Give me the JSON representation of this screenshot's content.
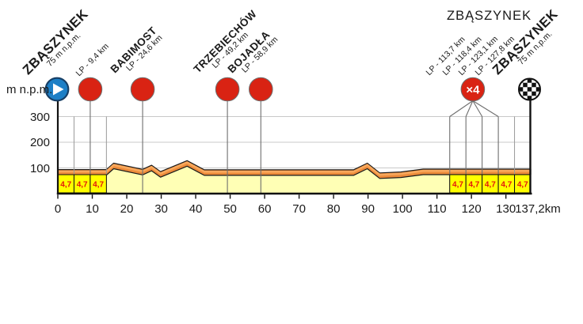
{
  "chart_data": {
    "type": "area",
    "description": "Cycling stage elevation profile",
    "x_axis": {
      "ticks": [
        "0",
        "10",
        "20",
        "30",
        "40",
        "50",
        "60",
        "70",
        "80",
        "90",
        "100",
        "110",
        "120",
        "130"
      ],
      "tick_km": [
        0,
        10,
        20,
        30,
        40,
        50,
        60,
        70,
        80,
        90,
        100,
        110,
        120,
        130
      ],
      "end_label": "137,2km",
      "end_km": 137.2,
      "range_km": [
        0,
        137.2
      ]
    },
    "y_axis": {
      "unit": "m n.p.m.",
      "ticks": [
        "300",
        "200",
        "100"
      ],
      "tick_m": [
        300,
        200,
        100
      ],
      "range_m": [
        0,
        330
      ]
    },
    "profile_points_km_m": [
      [
        0,
        75
      ],
      [
        14.1,
        75
      ],
      [
        16.2,
        100
      ],
      [
        24.6,
        76
      ],
      [
        27.2,
        92
      ],
      [
        29.8,
        67
      ],
      [
        37.5,
        110
      ],
      [
        42.5,
        74
      ],
      [
        85.8,
        74
      ],
      [
        89.8,
        100
      ],
      [
        93.4,
        62
      ],
      [
        99.5,
        66
      ],
      [
        106,
        77
      ],
      [
        137.2,
        77
      ]
    ],
    "start": {
      "name": "ZBĄSZYNEK",
      "elevation": "75 m n.p.m.",
      "km": 0
    },
    "finish": {
      "name": "ZBĄSZYNEK",
      "elevation": "75 m n.p.m.",
      "km": 137.2
    },
    "intermediates": [
      {
        "name": "",
        "sub": "LP - 9,4 km",
        "km": 9.4
      },
      {
        "name": "BABIMOST",
        "sub": "LP - 24,6 km",
        "km": 24.6
      },
      {
        "name": "TRZEBIECHÓW",
        "sub": "LP - 49,2 km",
        "km": 49.2
      },
      {
        "name": "BOJADŁA",
        "sub": "LP - 58,9 km",
        "km": 58.9
      }
    ],
    "circuit": {
      "header": "ZBĄSZYNEK",
      "badge": "×4",
      "badge_km": 120.4,
      "laps": [
        {
          "label": "LP - 113,7 km",
          "km": 113.7
        },
        {
          "label": "LP - 118,4 km",
          "km": 118.4
        },
        {
          "label": "LP - 123,1 km",
          "km": 123.1
        },
        {
          "label": "LP - 127,8 km",
          "km": 127.8
        }
      ],
      "extra_boundary_km": 132.5
    },
    "lap_boxes": {
      "start_boundaries_km": [
        0,
        4.7,
        9.4,
        14.1
      ],
      "start_labels": [
        "4,7",
        "4,7",
        "4,7"
      ],
      "finish_boundaries_km": [
        113.7,
        118.4,
        123.1,
        127.8,
        132.5,
        137.2
      ],
      "finish_labels": [
        "4,7",
        "4,7",
        "4,7",
        "4,7",
        "4,7"
      ],
      "start_circuit_boundary_km": [
        4.7,
        14.1
      ]
    },
    "colors": {
      "marker_red": "#D92313",
      "marker_red_border": "#6e6e6e",
      "start_blue": "#1D7FC6",
      "start_blue_border": "#173F66",
      "band_orange": "#ED8B3A",
      "band_highlight": "#F8A85C",
      "band_outline": "#1a1a1a",
      "area_pale_yellow": "#FFFFB5",
      "lap_box_yellow": "#FFFF00",
      "lap_box_text": "#E3170D",
      "gridline": "#C8C8C8",
      "stem_gray": "#6E6E6E",
      "boundary_gray": "#9A9A9A",
      "axis_black": "#111111"
    }
  }
}
